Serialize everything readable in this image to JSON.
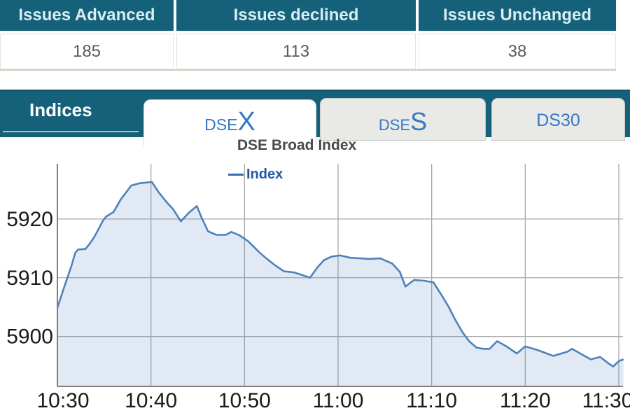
{
  "summary_table": {
    "headers": [
      "Issues Advanced",
      "Issues declined",
      "Issues Unchanged"
    ],
    "values": [
      "185",
      "113",
      "38"
    ]
  },
  "tab_bar": {
    "indices_label": "Indices",
    "tabs": [
      {
        "id": "dsex",
        "prefix": "DSE",
        "big": "X",
        "active": true
      },
      {
        "id": "dses",
        "prefix": "DSE",
        "big": "S",
        "active": false
      },
      {
        "id": "ds30",
        "label": "DS30",
        "active": false
      }
    ]
  },
  "colors": {
    "teal": "#15617a",
    "tab_text_blue": "#3478c8",
    "line_blue": "#4f81bd",
    "legend_blue": "#1e5aa8",
    "header_text": "#d8edf4",
    "grid_gray": "#a7a7a7"
  },
  "chart_data": {
    "type": "area",
    "title": "DSE Broad Index",
    "legend": [
      {
        "label": "Index",
        "color": "#4f81bd"
      }
    ],
    "x_unit": "minutes after 10:30",
    "x_ticks": [
      0,
      10,
      20,
      30,
      40,
      50,
      60
    ],
    "x_tick_labels": [
      "10:30",
      "10:40",
      "10:50",
      "11:00",
      "11:10",
      "11:20",
      "11:30"
    ],
    "y_ticks": [
      5900,
      5910,
      5920
    ],
    "ylim": [
      5891.5,
      5929.4
    ],
    "xlim": [
      0,
      60.5
    ],
    "grid": true,
    "line_color": "#4f81bd",
    "fill_color": "rgba(79,129,189,0.17)",
    "series": [
      {
        "name": "Index",
        "points": [
          [
            0.0,
            5904.9
          ],
          [
            0.7,
            5908.3
          ],
          [
            1.5,
            5912.0
          ],
          [
            1.9,
            5914.2
          ],
          [
            2.2,
            5914.8
          ],
          [
            3.0,
            5914.9
          ],
          [
            3.5,
            5915.9
          ],
          [
            4.0,
            5917.1
          ],
          [
            4.9,
            5919.8
          ],
          [
            5.2,
            5920.4
          ],
          [
            6.0,
            5921.2
          ],
          [
            6.8,
            5923.4
          ],
          [
            7.9,
            5925.7
          ],
          [
            8.8,
            5926.1
          ],
          [
            9.5,
            5926.2
          ],
          [
            10.1,
            5926.3
          ],
          [
            10.8,
            5924.6
          ],
          [
            11.6,
            5923.0
          ],
          [
            12.4,
            5921.6
          ],
          [
            13.2,
            5919.6
          ],
          [
            14.0,
            5921.0
          ],
          [
            14.9,
            5922.2
          ],
          [
            15.4,
            5920.3
          ],
          [
            16.1,
            5917.9
          ],
          [
            17.0,
            5917.3
          ],
          [
            18.0,
            5917.3
          ],
          [
            18.6,
            5917.8
          ],
          [
            19.5,
            5917.2
          ],
          [
            20.4,
            5916.2
          ],
          [
            21.6,
            5914.3
          ],
          [
            22.4,
            5913.2
          ],
          [
            23.2,
            5912.2
          ],
          [
            24.2,
            5911.1
          ],
          [
            25.3,
            5910.9
          ],
          [
            26.1,
            5910.5
          ],
          [
            27.0,
            5910.0
          ],
          [
            27.8,
            5911.8
          ],
          [
            28.5,
            5913.0
          ],
          [
            29.3,
            5913.6
          ],
          [
            30.2,
            5913.8
          ],
          [
            31.3,
            5913.4
          ],
          [
            32.4,
            5913.3
          ],
          [
            33.3,
            5913.2
          ],
          [
            34.5,
            5913.3
          ],
          [
            35.8,
            5912.4
          ],
          [
            36.6,
            5911.0
          ],
          [
            37.2,
            5908.5
          ],
          [
            38.1,
            5909.6
          ],
          [
            39.2,
            5909.5
          ],
          [
            40.2,
            5909.2
          ],
          [
            41.0,
            5907.2
          ],
          [
            41.8,
            5905.1
          ],
          [
            42.5,
            5902.9
          ],
          [
            43.3,
            5900.7
          ],
          [
            44.0,
            5899.2
          ],
          [
            44.8,
            5898.1
          ],
          [
            45.5,
            5897.9
          ],
          [
            46.2,
            5897.9
          ],
          [
            47.0,
            5899.2
          ],
          [
            48.0,
            5898.3
          ],
          [
            49.1,
            5897.1
          ],
          [
            50.0,
            5898.3
          ],
          [
            51.3,
            5897.7
          ],
          [
            52.3,
            5897.1
          ],
          [
            53.0,
            5896.7
          ],
          [
            54.5,
            5897.4
          ],
          [
            55.0,
            5897.9
          ],
          [
            56.0,
            5897.0
          ],
          [
            57.0,
            5896.1
          ],
          [
            58.0,
            5896.5
          ],
          [
            59.0,
            5895.3
          ],
          [
            59.4,
            5894.9
          ],
          [
            60.0,
            5895.8
          ],
          [
            60.5,
            5896.1
          ]
        ]
      }
    ]
  }
}
